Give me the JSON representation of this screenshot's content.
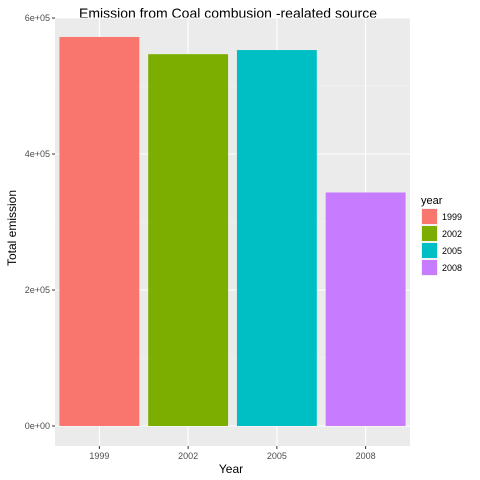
{
  "chart_data": {
    "type": "bar",
    "title": "Emission from Coal combusion -realated source",
    "xlabel": "Year",
    "ylabel": "Total emission",
    "categories": [
      "1999",
      "2002",
      "2005",
      "2008"
    ],
    "values": [
      572126,
      546789,
      552881,
      343432
    ],
    "colors": [
      "#F8766D",
      "#7CAE00",
      "#00BFC4",
      "#C77CFF"
    ],
    "ylim": [
      0,
      600000
    ],
    "y_ticks": [
      0,
      200000,
      400000,
      600000
    ],
    "y_tick_labels": [
      "0e+00",
      "2e+05",
      "4e+05",
      "6e+05"
    ],
    "grid": true,
    "panel_background": "#EBEBEB",
    "legend": {
      "title": "year",
      "placement": "right",
      "entries": [
        "1999",
        "2002",
        "2005",
        "2008"
      ]
    }
  }
}
